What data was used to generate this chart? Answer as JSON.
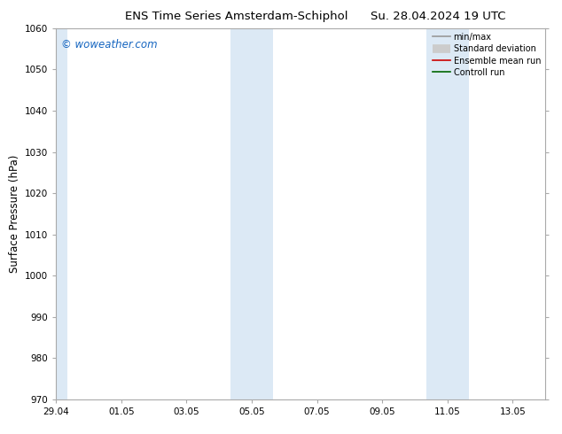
{
  "title_left": "ENS Time Series Amsterdam-Schiphol",
  "title_right": "Su. 28.04.2024 19 UTC",
  "ylabel": "Surface Pressure (hPa)",
  "ylim": [
    970,
    1060
  ],
  "yticks": [
    970,
    980,
    990,
    1000,
    1010,
    1020,
    1030,
    1040,
    1050,
    1060
  ],
  "xtick_positions": [
    0,
    2,
    4,
    6,
    8,
    10,
    12,
    14
  ],
  "xtick_labels": [
    "29.04",
    "01.05",
    "03.05",
    "05.05",
    "07.05",
    "09.05",
    "11.05",
    "13.05"
  ],
  "xlim": [
    0,
    15
  ],
  "shaded_bands": [
    {
      "x_start": 0.0,
      "x_end": 0.35
    },
    {
      "x_start": 5.35,
      "x_end": 6.0
    },
    {
      "x_start": 6.0,
      "x_end": 6.65
    },
    {
      "x_start": 11.35,
      "x_end": 12.0
    },
    {
      "x_start": 12.0,
      "x_end": 12.65
    }
  ],
  "shaded_color": "#dce9f5",
  "watermark": "© woweather.com",
  "watermark_color": "#1565c0",
  "legend_entries": [
    {
      "label": "min/max",
      "color": "#999999",
      "lw": 1.2
    },
    {
      "label": "Standard deviation",
      "color": "#cccccc",
      "lw": 7
    },
    {
      "label": "Ensemble mean run",
      "color": "#cc0000",
      "lw": 1.2
    },
    {
      "label": "Controll run",
      "color": "#006600",
      "lw": 1.2
    }
  ],
  "background_color": "#ffffff",
  "spine_color": "#aaaaaa",
  "tick_label_fontsize": 7.5,
  "axis_label_fontsize": 8.5,
  "title_fontsize": 9.5,
  "legend_fontsize": 7.0
}
